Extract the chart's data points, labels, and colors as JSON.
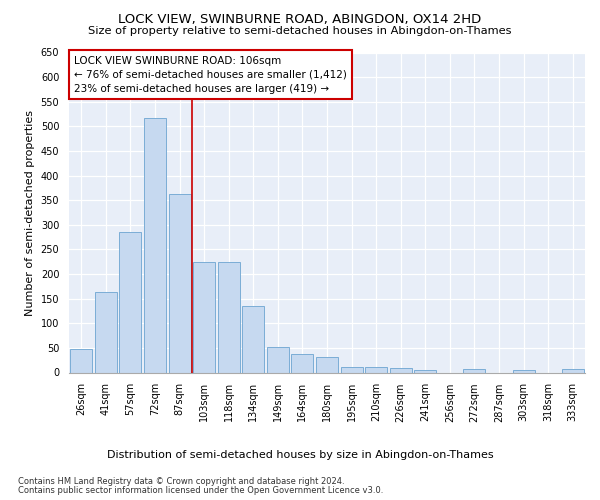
{
  "title": "LOCK VIEW, SWINBURNE ROAD, ABINGDON, OX14 2HD",
  "subtitle": "Size of property relative to semi-detached houses in Abingdon-on-Thames",
  "xlabel": "Distribution of semi-detached houses by size in Abingdon-on-Thames",
  "ylabel": "Number of semi-detached properties",
  "categories": [
    "26sqm",
    "41sqm",
    "57sqm",
    "72sqm",
    "87sqm",
    "103sqm",
    "118sqm",
    "134sqm",
    "149sqm",
    "164sqm",
    "180sqm",
    "195sqm",
    "210sqm",
    "226sqm",
    "241sqm",
    "256sqm",
    "272sqm",
    "287sqm",
    "303sqm",
    "318sqm",
    "333sqm"
  ],
  "bar_values": [
    47,
    163,
    285,
    517,
    362,
    225,
    225,
    135,
    52,
    37,
    32,
    12,
    12,
    9,
    5,
    0,
    7,
    0,
    5,
    0,
    7
  ],
  "bar_color": "#c6d9f0",
  "bar_edge_color": "#7badd6",
  "vline_x": 4.5,
  "vline_color": "#cc0000",
  "annotation_title": "LOCK VIEW SWINBURNE ROAD: 106sqm",
  "annotation_line1": "← 76% of semi-detached houses are smaller (1,412)",
  "annotation_line2": "23% of semi-detached houses are larger (419) →",
  "annotation_box_facecolor": "#ffffff",
  "annotation_box_edgecolor": "#cc0000",
  "ylim": [
    0,
    650
  ],
  "yticks": [
    0,
    50,
    100,
    150,
    200,
    250,
    300,
    350,
    400,
    450,
    500,
    550,
    600,
    650
  ],
  "bg_color": "#e8eef8",
  "grid_color": "#ffffff",
  "title_fontsize": 9.5,
  "subtitle_fontsize": 8.2,
  "ylabel_fontsize": 8.0,
  "xlabel_fontsize": 8.0,
  "tick_fontsize": 7.0,
  "annot_fontsize": 7.5,
  "footer_fontsize": 6.0,
  "footer1": "Contains HM Land Registry data © Crown copyright and database right 2024.",
  "footer2": "Contains public sector information licensed under the Open Government Licence v3.0."
}
